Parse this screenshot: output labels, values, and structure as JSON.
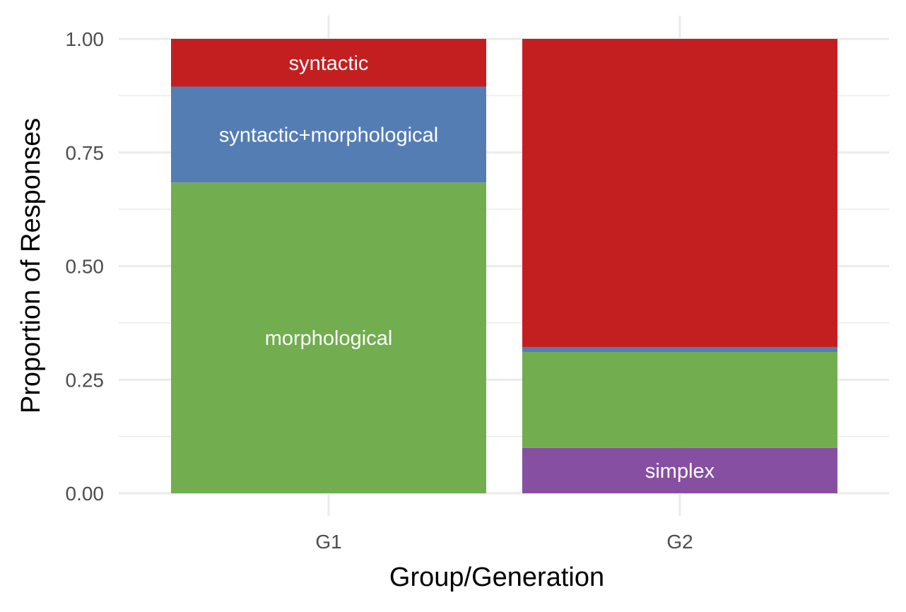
{
  "chart_data": {
    "type": "bar",
    "stacked": true,
    "categories": [
      "G1",
      "G2"
    ],
    "series": [
      {
        "name": "simplex",
        "color": "#864fa1",
        "values": [
          0.0,
          0.1
        ]
      },
      {
        "name": "morphological",
        "color": "#72ad50",
        "values": [
          0.684,
          0.211
        ]
      },
      {
        "name": "syntactic+morphological",
        "color": "#547db4",
        "values": [
          0.211,
          0.011
        ]
      },
      {
        "name": "syntactic",
        "color": "#c31f21",
        "values": [
          0.105,
          0.678
        ]
      }
    ],
    "segment_labels": [
      {
        "category": "G1",
        "series": "morphological",
        "text": "morphological"
      },
      {
        "category": "G1",
        "series": "syntactic+morphological",
        "text": "syntactic+morphological"
      },
      {
        "category": "G1",
        "series": "syntactic",
        "text": "syntactic"
      },
      {
        "category": "G2",
        "series": "simplex",
        "text": "simplex"
      }
    ],
    "xlabel": "Group/Generation",
    "ylabel": "Proportion of Responses",
    "ylim": [
      0,
      1
    ],
    "yticks": [
      "0.00",
      "0.25",
      "0.50",
      "0.75",
      "1.00"
    ],
    "ytick_values": [
      0,
      0.25,
      0.5,
      0.75,
      1.0
    ],
    "grid": true,
    "legend": "none"
  }
}
